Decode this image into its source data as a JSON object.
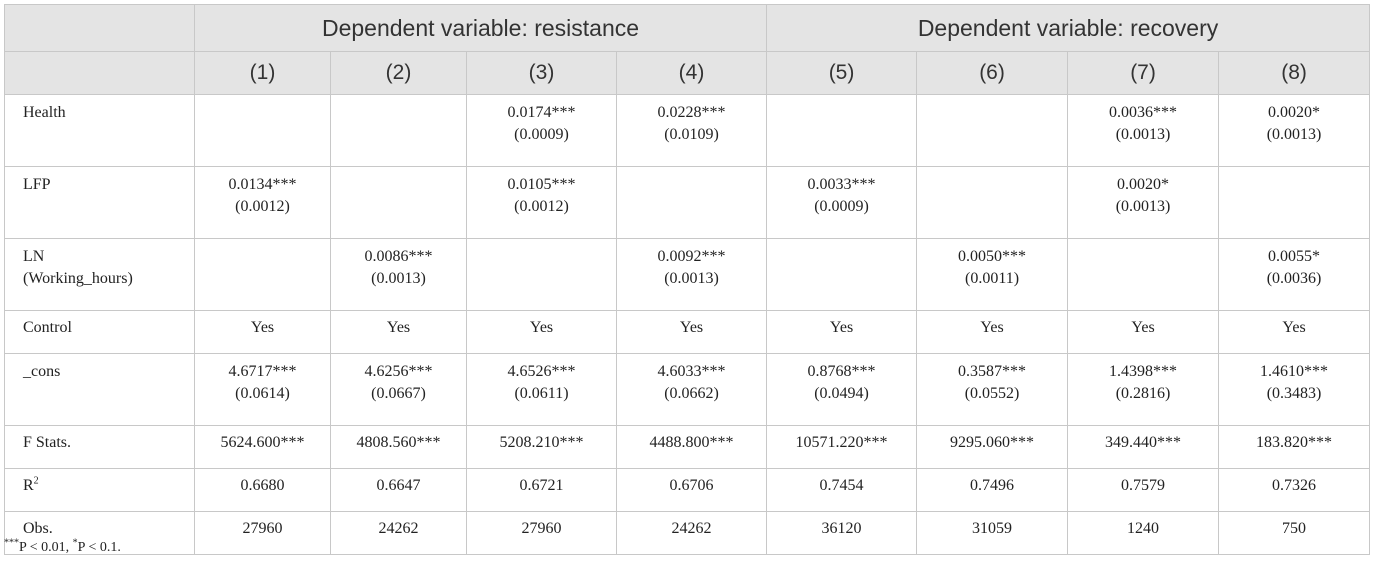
{
  "header": {
    "group1": "Dependent variable: resistance",
    "group2": "Dependent variable: recovery",
    "columns": [
      "(1)",
      "(2)",
      "(3)",
      "(4)",
      "(5)",
      "(6)",
      "(7)",
      "(8)"
    ]
  },
  "rows": [
    {
      "label": "Health",
      "label2": "",
      "cells": [
        [
          "",
          ""
        ],
        [
          "",
          ""
        ],
        [
          "0.0174***",
          "(0.0009)"
        ],
        [
          "0.0228***",
          "(0.0109)"
        ],
        [
          "",
          ""
        ],
        [
          "",
          ""
        ],
        [
          "0.0036***",
          "(0.0013)"
        ],
        [
          "0.0020*",
          "(0.0013)"
        ]
      ]
    },
    {
      "label": "LFP",
      "label2": "",
      "cells": [
        [
          "0.0134***",
          "(0.0012)"
        ],
        [
          "",
          ""
        ],
        [
          "0.0105***",
          "(0.0012)"
        ],
        [
          "",
          ""
        ],
        [
          "0.0033***",
          "(0.0009)"
        ],
        [
          "",
          ""
        ],
        [
          "0.0020*",
          "(0.0013)"
        ],
        [
          "",
          ""
        ]
      ]
    },
    {
      "label": "LN",
      "label2": "(Working_hours)",
      "cells": [
        [
          "",
          ""
        ],
        [
          "0.0086***",
          "(0.0013)"
        ],
        [
          "",
          ""
        ],
        [
          "0.0092***",
          "(0.0013)"
        ],
        [
          "",
          ""
        ],
        [
          "0.0050***",
          "(0.0011)"
        ],
        [
          "",
          ""
        ],
        [
          "0.0055*",
          "(0.0036)"
        ]
      ]
    },
    {
      "label": "Control",
      "cells": [
        "Yes",
        "Yes",
        "Yes",
        "Yes",
        "Yes",
        "Yes",
        "Yes",
        "Yes"
      ]
    },
    {
      "label": "_cons",
      "label2": "",
      "cells": [
        [
          "4.6717***",
          "(0.0614)"
        ],
        [
          "4.6256***",
          "(0.0667)"
        ],
        [
          "4.6526***",
          "(0.0611)"
        ],
        [
          "4.6033***",
          "(0.0662)"
        ],
        [
          "0.8768***",
          "(0.0494)"
        ],
        [
          "0.3587***",
          "(0.0552)"
        ],
        [
          "1.4398***",
          "(0.2816)"
        ],
        [
          "1.4610***",
          "(0.3483)"
        ]
      ]
    },
    {
      "label": "F Stats.",
      "cells": [
        "5624.600***",
        "4808.560***",
        "5208.210***",
        "4488.800***",
        "10571.220***",
        "9295.060***",
        "349.440***",
        "183.820***"
      ]
    },
    {
      "label": "R",
      "label_sup": "2",
      "cells": [
        "0.6680",
        "0.6647",
        "0.6721",
        "0.6706",
        "0.7454",
        "0.7496",
        "0.7579",
        "0.7326"
      ]
    },
    {
      "label": "Obs.",
      "cells": [
        "27960",
        "24262",
        "27960",
        "24262",
        "36120",
        "31059",
        "1240",
        "750"
      ]
    }
  ],
  "note": {
    "sup1": "***",
    "text1": "P < 0.01, ",
    "sup2": "*",
    "text2": "P < 0.1."
  }
}
